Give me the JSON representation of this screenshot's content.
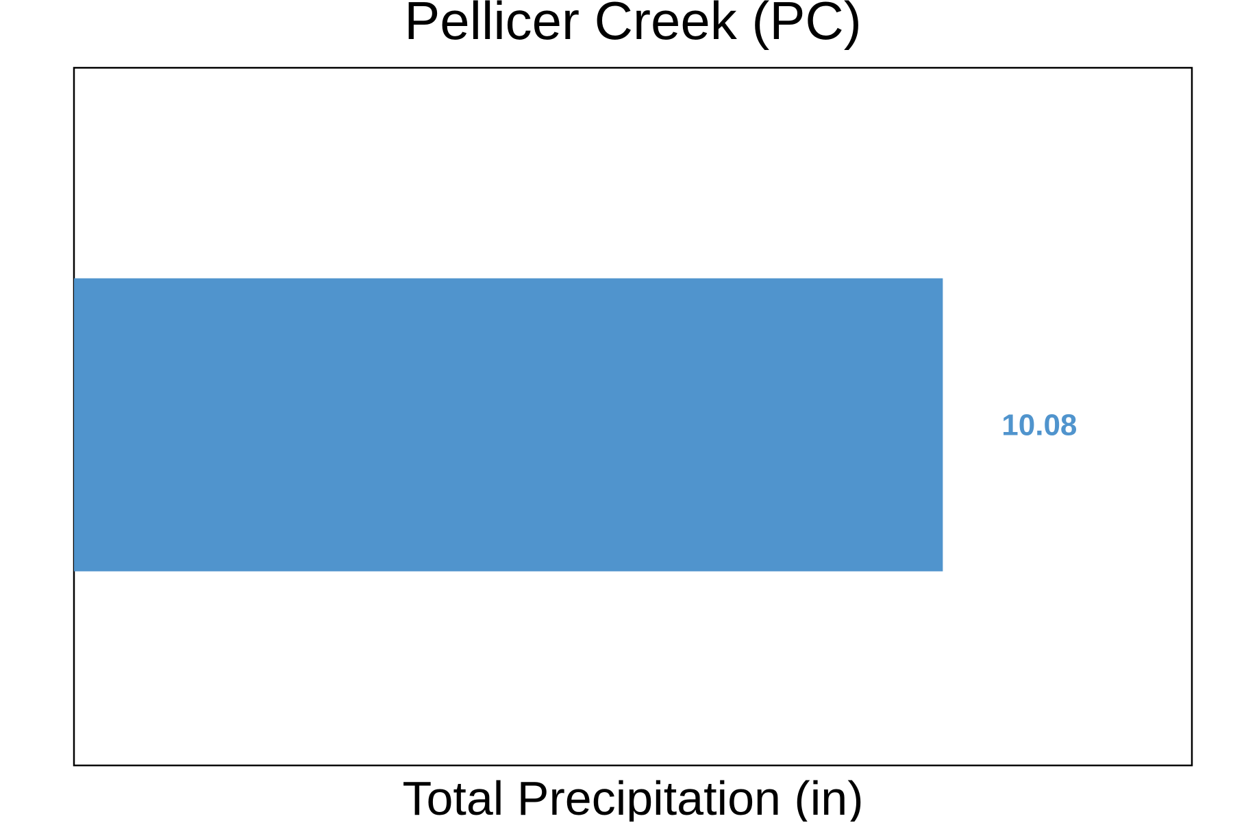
{
  "chart_data": {
    "type": "bar",
    "orientation": "horizontal",
    "title": "Pellicer Creek (PC)",
    "xlabel": "Total Precipitation (in)",
    "ylabel": "",
    "categories": [
      "Pellicer Creek"
    ],
    "values": [
      10.08
    ],
    "data_labels": [
      "10.08"
    ],
    "xlim": [
      0,
      12.97
    ],
    "grid": false,
    "legend": "none",
    "colors": {
      "bar": "#5094CD",
      "label": "#5094CD",
      "frame": "#000000"
    }
  }
}
